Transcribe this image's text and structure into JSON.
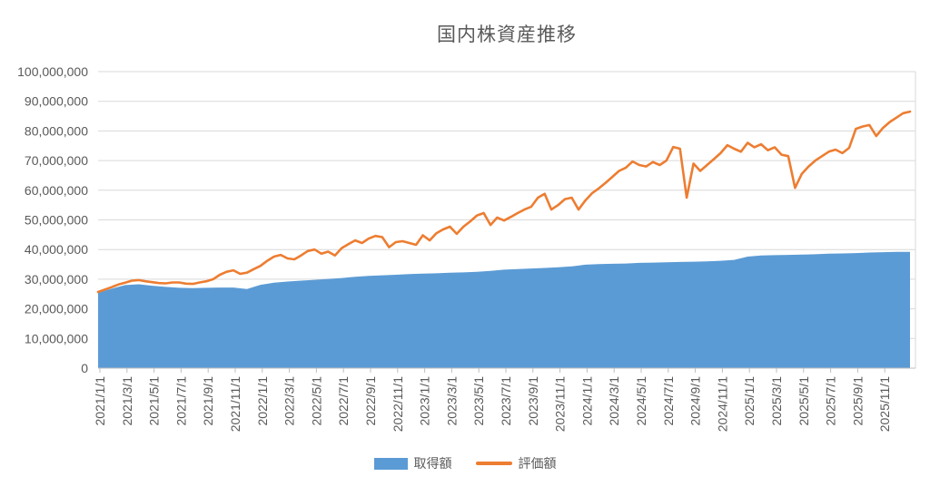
{
  "title": "国内株資産推移",
  "legend": {
    "acquisition_label": "取得額",
    "valuation_label": "評価額"
  },
  "colors": {
    "area": "#5B9BD5",
    "line": "#ED7D31",
    "grid": "#D9D9D9",
    "axis": "#BFBFBF",
    "text": "#595959"
  },
  "y_axis": {
    "labels": [
      "100,000,000",
      "90,000,000",
      "80,000,000",
      "70,000,000",
      "60,000,000",
      "50,000,000",
      "40,000,000",
      "30,000,000",
      "20,000,000",
      "10,000,000",
      "0"
    ],
    "min": 0,
    "max": 100000000
  },
  "x_axis": {
    "labels": [
      "2021/1/1",
      "2021/3/1",
      "2021/5/1",
      "2021/7/1",
      "2021/9/1",
      "2021/11/1",
      "2022/1/1",
      "2022/3/1",
      "2022/5/1",
      "2022/7/1",
      "2022/9/1",
      "2022/11/1",
      "2023/1/1",
      "2023/3/1",
      "2023/5/1",
      "2023/7/1",
      "2023/9/1",
      "2023/11/1",
      "2024/1/1",
      "2024/3/1",
      "2024/5/1",
      "2024/7/1",
      "2024/9/1",
      "2024/11/1",
      "2025/1/1",
      "2025/3/1",
      "2025/5/1",
      "2025/7/1",
      "2025/9/1",
      "2025/11/1"
    ]
  },
  "chart_data": {
    "type": "area",
    "title": "国内株資産推移",
    "xlabel": "",
    "ylabel": "",
    "ylim": [
      0,
      100000000
    ],
    "grid": true,
    "legend_position": "bottom",
    "unit": "million JPY",
    "start_month": "2021-01",
    "series": [
      {
        "name": "取得額",
        "type": "area",
        "color": "#5B9BD5",
        "interval_months": 1,
        "values_millions": [
          25.5,
          26.8,
          28.0,
          28.3,
          27.8,
          27.4,
          27.1,
          27.0,
          27.1,
          27.2,
          27.2,
          26.7,
          28.1,
          28.8,
          29.2,
          29.5,
          29.8,
          30.1,
          30.4,
          30.8,
          31.1,
          31.3,
          31.5,
          31.7,
          31.9,
          32.0,
          32.2,
          32.3,
          32.5,
          32.8,
          33.2,
          33.4,
          33.6,
          33.8,
          34.0,
          34.3,
          34.9,
          35.1,
          35.2,
          35.3,
          35.5,
          35.6,
          35.7,
          35.8,
          35.9,
          36.0,
          36.2,
          36.5,
          37.6,
          38.0,
          38.1,
          38.2,
          38.3,
          38.4,
          38.6,
          38.7,
          38.8,
          39.0,
          39.1,
          39.2,
          39.2
        ]
      },
      {
        "name": "評価額",
        "type": "line",
        "color": "#ED7D31",
        "interval_months": 0.5,
        "values_millions": [
          25.7,
          26.5,
          27.3,
          28.2,
          28.8,
          29.5,
          29.7,
          29.3,
          29.0,
          28.7,
          28.6,
          28.9,
          28.9,
          28.5,
          28.4,
          28.9,
          29.3,
          30.0,
          31.5,
          32.5,
          33.0,
          31.8,
          32.2,
          33.4,
          34.5,
          36.2,
          37.6,
          38.2,
          37.0,
          36.7,
          38.0,
          39.5,
          40.0,
          38.6,
          39.3,
          38.0,
          40.5,
          41.8,
          43.1,
          42.2,
          43.7,
          44.6,
          44.2,
          40.8,
          42.5,
          42.8,
          42.2,
          41.6,
          44.8,
          43.1,
          45.5,
          46.8,
          47.7,
          45.3,
          47.7,
          49.5,
          51.5,
          52.3,
          48.3,
          50.8,
          49.8,
          51.0,
          52.3,
          53.5,
          54.4,
          57.5,
          58.8,
          53.5,
          55.0,
          57.0,
          57.5,
          53.5,
          56.5,
          59.0,
          60.6,
          62.5,
          64.5,
          66.5,
          67.6,
          69.7,
          68.5,
          68.0,
          69.5,
          68.5,
          70.0,
          74.6,
          74.0,
          57.5,
          69.0,
          66.5,
          68.5,
          70.5,
          72.5,
          75.2,
          74.0,
          73.0,
          76.0,
          74.5,
          75.5,
          73.5,
          74.5,
          72.0,
          71.5,
          60.8,
          65.5,
          68.0,
          70.0,
          71.5,
          73.0,
          73.7,
          72.5,
          74.3,
          80.7,
          81.5,
          82.0,
          78.3,
          81.0,
          83.0,
          84.5,
          86.0,
          86.5
        ]
      }
    ]
  }
}
